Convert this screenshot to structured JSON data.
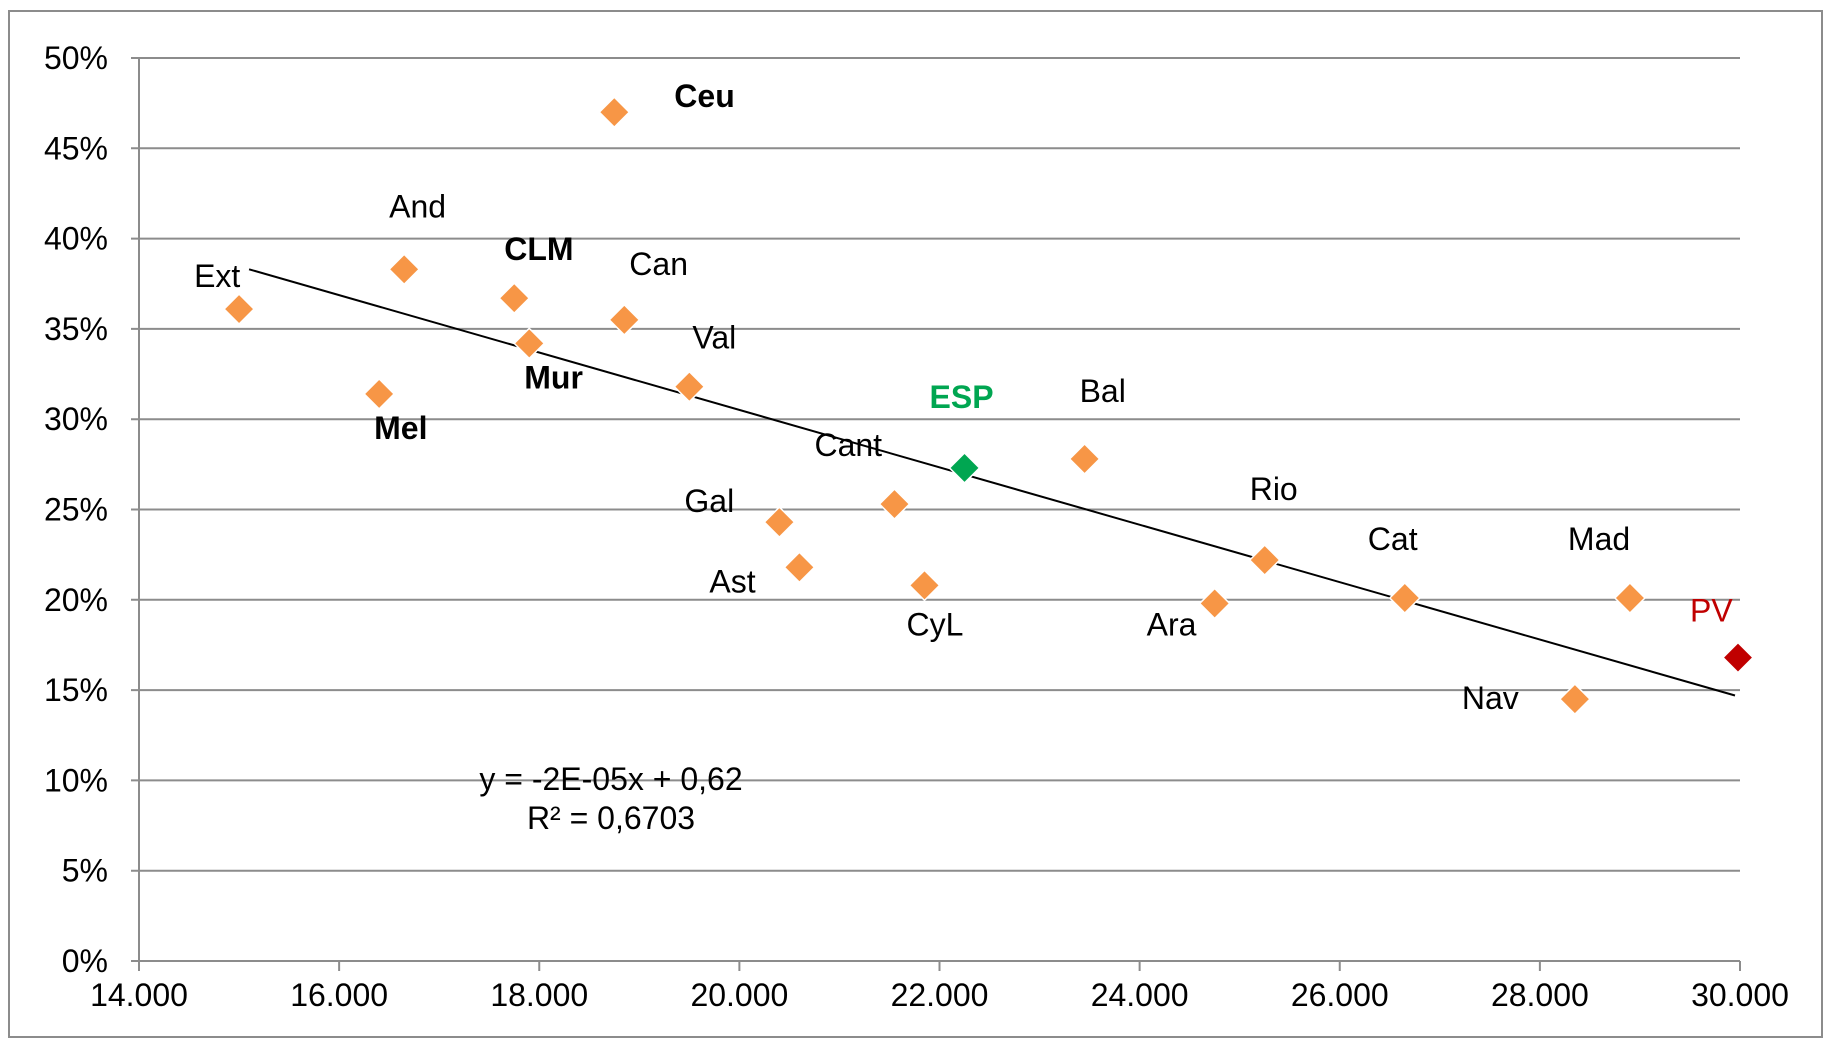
{
  "chart_data": {
    "type": "scatter",
    "xlim": [
      14000,
      30000
    ],
    "ylim": [
      0,
      50
    ],
    "x_ticks": [
      14000,
      16000,
      18000,
      20000,
      22000,
      24000,
      26000,
      28000,
      30000
    ],
    "x_tick_labels": [
      "14.000",
      "16.000",
      "18.000",
      "20.000",
      "22.000",
      "24.000",
      "26.000",
      "28.000",
      "30.000"
    ],
    "y_ticks": [
      0,
      5,
      10,
      15,
      20,
      25,
      30,
      35,
      40,
      45,
      50
    ],
    "y_tick_labels": [
      "0%",
      "5%",
      "10%",
      "15%",
      "20%",
      "25%",
      "30%",
      "35%",
      "40%",
      "45%",
      "50%"
    ],
    "grid": "horizontal",
    "marker": "diamond",
    "colors": {
      "default": "#f79646",
      "ESP": "#00a651",
      "PV": "#c00000",
      "trendline": "#000000",
      "grid": "#8c8c8c"
    },
    "points": [
      {
        "label": "Ceu",
        "x": 18750,
        "y": 47.0,
        "bold": true
      },
      {
        "label": "And",
        "x": 16650,
        "y": 38.3
      },
      {
        "label": "CLM",
        "x": 17750,
        "y": 36.7,
        "bold": true
      },
      {
        "label": "Ext",
        "x": 15000,
        "y": 36.1
      },
      {
        "label": "Can",
        "x": 18850,
        "y": 35.5
      },
      {
        "label": "Mur",
        "x": 17900,
        "y": 34.2,
        "bold": true
      },
      {
        "label": "Val",
        "x": 19500,
        "y": 31.8
      },
      {
        "label": "Mel",
        "x": 16400,
        "y": 31.4,
        "bold": true
      },
      {
        "label": "ESP",
        "x": 22250,
        "y": 27.3,
        "bold": true,
        "color": "#00a651"
      },
      {
        "label": "Bal",
        "x": 23450,
        "y": 27.8
      },
      {
        "label": "Cant",
        "x": 21550,
        "y": 25.3
      },
      {
        "label": "Gal",
        "x": 20400,
        "y": 24.3
      },
      {
        "label": "Ast",
        "x": 20600,
        "y": 21.8
      },
      {
        "label": "CyL",
        "x": 21850,
        "y": 20.8
      },
      {
        "label": "Rio",
        "x": 25250,
        "y": 22.2
      },
      {
        "label": "Ara",
        "x": 24750,
        "y": 19.8
      },
      {
        "label": "Cat",
        "x": 26650,
        "y": 20.1
      },
      {
        "label": "Mad",
        "x": 28900,
        "y": 20.1
      },
      {
        "label": "Nav",
        "x": 28350,
        "y": 14.5
      },
      {
        "label": "PV",
        "x": 29980,
        "y": 16.8,
        "color": "#c00000"
      }
    ],
    "trendline": {
      "x": [
        15100,
        29950
      ],
      "y": [
        38.3,
        14.7
      ],
      "equation": "y = -2E-05x + 0,62",
      "r_squared": "R² = 0,6703"
    }
  }
}
